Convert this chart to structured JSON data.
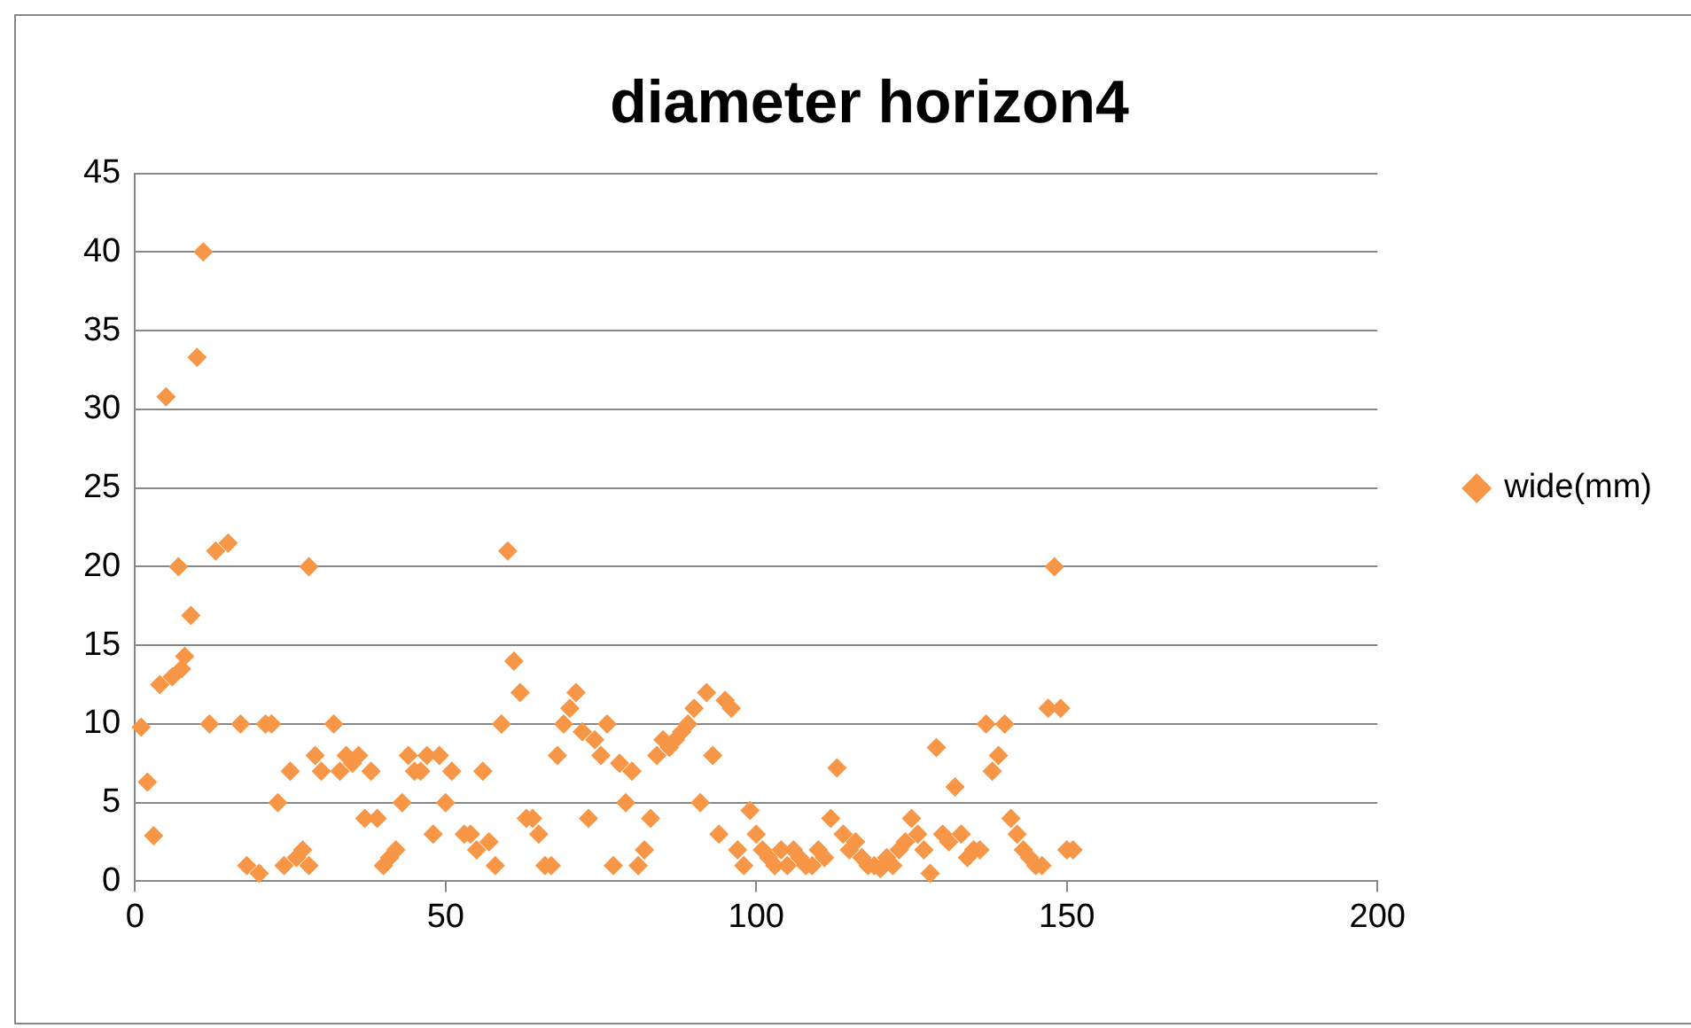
{
  "chart_data": {
    "type": "scatter",
    "title": "diameter horizon4",
    "x": [
      1,
      2,
      3,
      4,
      5,
      6,
      7,
      7.5,
      8,
      9,
      10,
      11,
      12,
      13,
      15,
      17,
      18,
      20,
      21,
      22,
      23,
      24,
      25,
      26,
      27,
      28,
      28,
      29,
      30,
      32,
      33,
      34,
      35,
      36,
      37,
      38,
      39,
      40,
      41,
      42,
      43,
      44,
      45,
      46,
      47,
      48,
      49,
      50,
      51,
      53,
      54,
      55,
      56,
      57,
      58,
      59,
      60,
      61,
      62,
      63,
      64,
      65,
      66,
      67,
      68,
      69,
      70,
      71,
      72,
      73,
      74,
      75,
      76,
      77,
      78,
      79,
      80,
      81,
      82,
      83,
      84,
      85,
      86,
      87,
      88,
      89,
      90,
      91,
      92,
      93,
      94,
      95,
      96,
      97,
      98,
      99,
      100,
      101,
      102,
      103,
      104,
      105,
      106,
      107,
      108,
      109,
      110,
      111,
      112,
      113,
      114,
      115,
      116,
      117,
      118,
      119,
      120,
      121,
      122,
      123,
      124,
      125,
      126,
      127,
      128,
      129,
      130,
      131,
      132,
      133,
      134,
      135,
      136,
      137,
      138,
      139,
      140,
      141,
      142,
      143,
      144,
      145,
      146,
      147,
      148,
      149,
      150,
      151
    ],
    "series": [
      {
        "name": "wide(mm)",
        "color": "#f79646",
        "values": [
          9.8,
          6.3,
          2.9,
          12.5,
          30.8,
          13,
          20,
          13.5,
          14.3,
          16.9,
          33.3,
          40,
          10,
          21,
          21.5,
          10,
          1,
          0.5,
          10,
          10,
          5,
          1,
          7,
          1.5,
          2,
          1,
          20,
          8,
          7,
          10,
          7,
          8,
          7.5,
          8,
          4,
          7,
          4,
          1,
          1.5,
          2,
          5,
          8,
          7,
          7,
          8,
          3,
          8,
          5,
          7,
          3,
          3,
          2,
          7,
          2.5,
          1,
          10,
          21,
          14,
          12,
          4,
          4,
          3,
          1,
          1,
          8,
          10,
          11,
          12,
          9.5,
          4,
          9,
          8,
          10,
          1,
          7.5,
          5,
          7,
          1,
          2,
          4,
          8,
          9,
          8.5,
          9,
          9.5,
          10,
          11,
          5,
          12,
          8,
          3,
          11.5,
          11,
          2,
          1,
          4.5,
          3,
          2,
          1.5,
          1,
          2,
          1,
          2,
          1.5,
          1,
          1,
          2,
          1.5,
          4,
          7.2,
          3,
          2,
          2.5,
          1.5,
          1,
          1,
          0.8,
          1.5,
          1,
          2,
          2.5,
          4,
          3,
          2,
          0.5,
          8.5,
          3,
          2.5,
          6,
          3,
          1.5,
          2,
          2,
          10,
          7,
          8,
          10,
          4,
          3,
          2,
          1.5,
          1,
          1,
          11,
          20,
          11,
          2,
          2
        ]
      }
    ],
    "xlim": [
      0,
      200
    ],
    "xticks": [
      0,
      50,
      100,
      150,
      200
    ],
    "ylim": [
      0,
      45
    ],
    "yticks": [
      0,
      5,
      10,
      15,
      20,
      25,
      30,
      35,
      40,
      45
    ],
    "grid": "y",
    "legend": "right",
    "marker": "diamond"
  }
}
